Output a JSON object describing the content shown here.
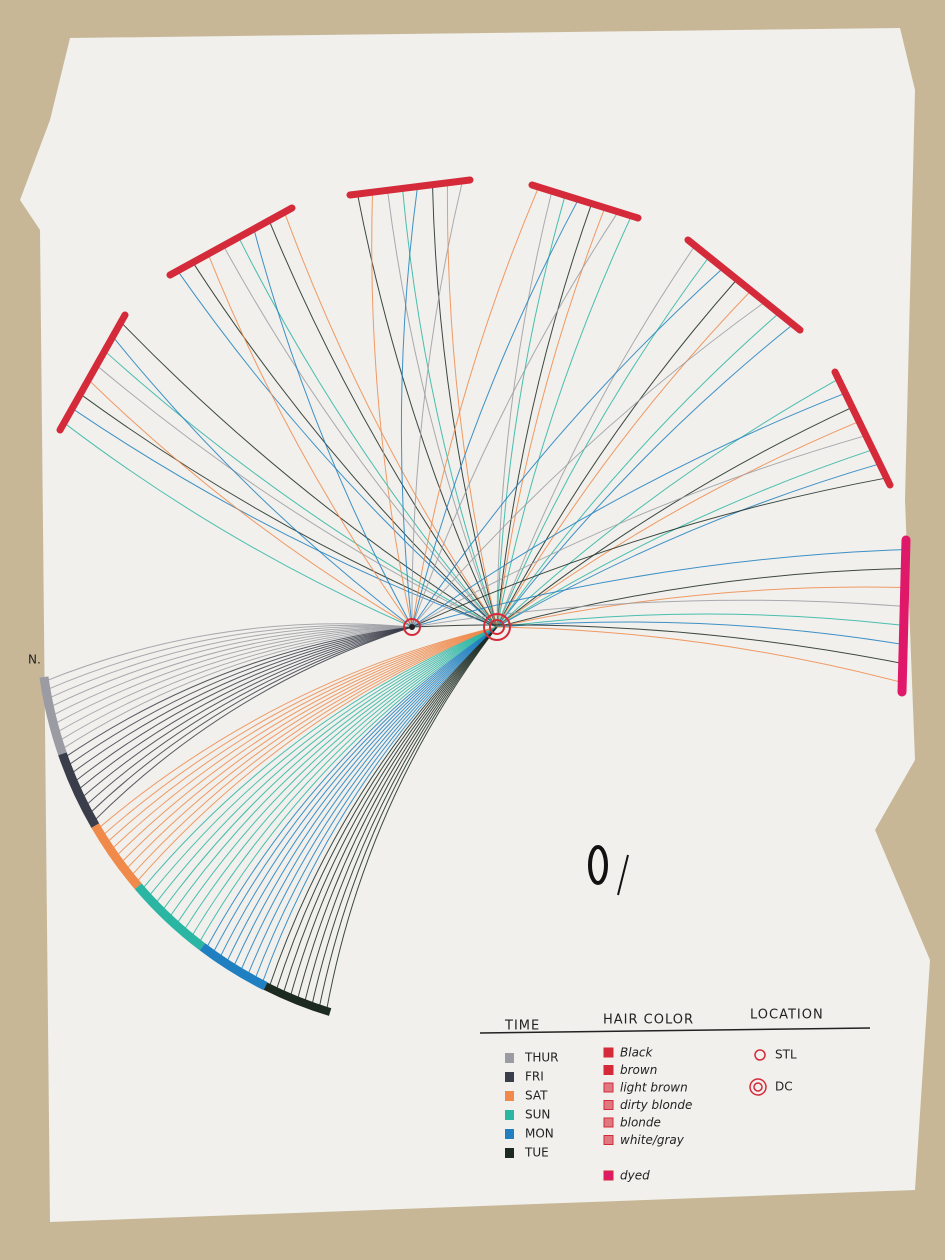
{
  "mark": "N.",
  "legend": {
    "headers": [
      "TIME",
      "HAIR COLOR",
      "LOCATION"
    ],
    "time": [
      {
        "label": "THUR",
        "color": "#9b9ca3"
      },
      {
        "label": "FRI",
        "color": "#3a3d4a"
      },
      {
        "label": "SAT",
        "color": "#f08a4b"
      },
      {
        "label": "SUN",
        "color": "#2bb5a3"
      },
      {
        "label": "MON",
        "color": "#1f7fc0"
      },
      {
        "label": "TUE",
        "color": "#1c2a22"
      }
    ],
    "hair_color": [
      "Black",
      "brown",
      "light brown",
      "dirty blonde",
      "blonde",
      "white/gray",
      "dyed"
    ],
    "location": [
      "STL",
      "DC"
    ]
  }
}
